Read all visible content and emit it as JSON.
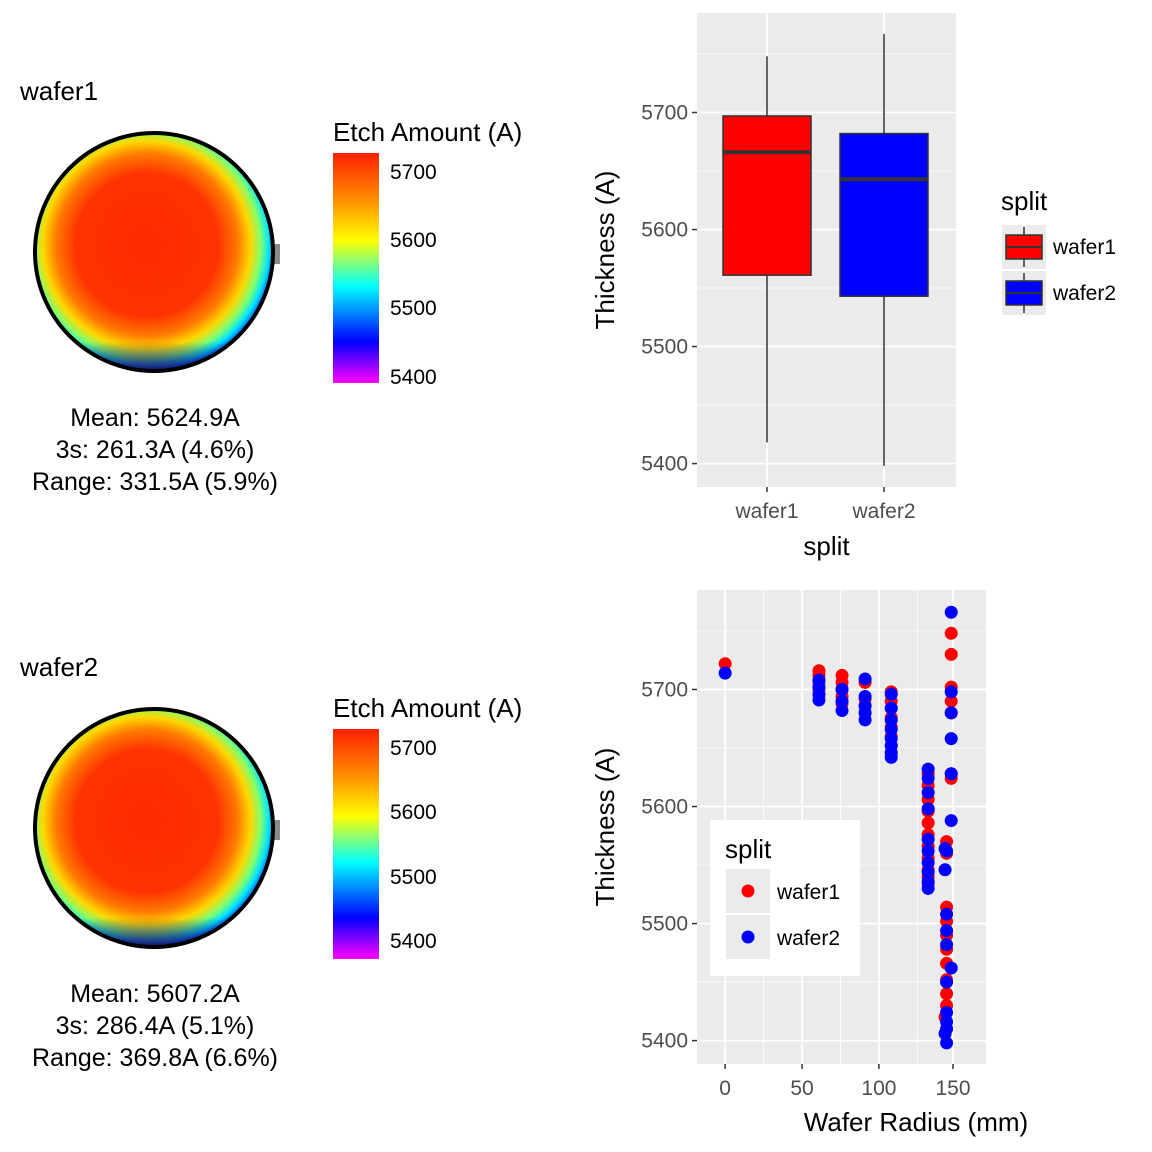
{
  "wafers": [
    {
      "name": "wafer1",
      "stats": [
        "Mean: 5624.9A",
        "3s: 261.3A (4.6%)",
        "Range: 331.5A (5.9%)"
      ],
      "colorbar": {
        "title": "Etch Amount (A)",
        "ticks": [
          "5700",
          "5600",
          "5500",
          "5400"
        ]
      }
    },
    {
      "name": "wafer2",
      "stats": [
        "Mean: 5607.2A",
        "3s: 286.4A (5.1%)",
        "Range: 369.8A (6.6%)"
      ],
      "colorbar": {
        "title": "Etch Amount (A)",
        "ticks": [
          "5700",
          "5600",
          "5500",
          "5400"
        ]
      }
    }
  ],
  "colors": {
    "wafer1": "#ff0000",
    "wafer2": "#0000ff",
    "panel_bg": "#ebebeb",
    "grid": "#ffffff",
    "colorbar_stops": [
      "#ff00ff",
      "#0000ff",
      "#00ffff",
      "#ffff00",
      "#ff8000",
      "#ff2000"
    ]
  },
  "chart_data": [
    {
      "type": "heatmap",
      "title": "wafer1",
      "legend_title": "Etch Amount (A)",
      "scale": [
        5400,
        5700
      ]
    },
    {
      "type": "heatmap",
      "title": "wafer2",
      "legend_title": "Etch Amount (A)",
      "scale": [
        5400,
        5700
      ]
    },
    {
      "type": "box",
      "xlabel": "split",
      "ylabel": "Thickness (A)",
      "categories": [
        "wafer1",
        "wafer2"
      ],
      "ylim": [
        5380,
        5785
      ],
      "yticks": [
        5400,
        5500,
        5600,
        5700
      ],
      "boxes": [
        {
          "name": "wafer1",
          "min": 5418,
          "q1": 5561,
          "median": 5666,
          "q3": 5697,
          "max": 5748
        },
        {
          "name": "wafer2",
          "min": 5398,
          "q1": 5543,
          "median": 5643,
          "q3": 5682,
          "max": 5767
        }
      ],
      "legend": {
        "title": "split",
        "entries": [
          "wafer1",
          "wafer2"
        ],
        "position": "right"
      },
      "grid": true
    },
    {
      "type": "scatter",
      "xlabel": "Wafer Radius (mm)",
      "ylabel": "Thickness (A)",
      "xlim": [
        -8,
        152
      ],
      "ylim": [
        5380,
        5785
      ],
      "xticks": [
        0,
        50,
        100,
        150
      ],
      "yticks": [
        5400,
        5500,
        5600,
        5700
      ],
      "legend": {
        "title": "split",
        "entries": [
          "wafer1",
          "wafer2"
        ],
        "position": "bottom-left inside"
      },
      "grid": true,
      "series": [
        {
          "name": "wafer1",
          "points": [
            [
              0,
              5722
            ],
            [
              61,
              5716
            ],
            [
              61,
              5712
            ],
            [
              61,
              5706
            ],
            [
              61,
              5700
            ],
            [
              61,
              5695
            ],
            [
              76,
              5712
            ],
            [
              76,
              5706
            ],
            [
              76,
              5700
            ],
            [
              76,
              5694
            ],
            [
              76,
              5688
            ],
            [
              91,
              5706
            ],
            [
              91,
              5692
            ],
            [
              91,
              5686
            ],
            [
              91,
              5680
            ],
            [
              108,
              5698
            ],
            [
              108,
              5690
            ],
            [
              108,
              5684
            ],
            [
              108,
              5676
            ],
            [
              108,
              5668
            ],
            [
              108,
              5660
            ],
            [
              108,
              5652
            ],
            [
              108,
              5646
            ],
            [
              132,
              5628
            ],
            [
              132,
              5618
            ],
            [
              132,
              5606
            ],
            [
              132,
              5596
            ],
            [
              132,
              5586
            ],
            [
              132,
              5576
            ],
            [
              132,
              5566
            ],
            [
              132,
              5556
            ],
            [
              132,
              5546
            ],
            [
              132,
              5540
            ],
            [
              132,
              5534
            ],
            [
              144,
              5570
            ],
            [
              144,
              5560
            ],
            [
              144,
              5514
            ],
            [
              144,
              5502
            ],
            [
              144,
              5490
            ],
            [
              144,
              5478
            ],
            [
              144,
              5466
            ],
            [
              144,
              5452
            ],
            [
              144,
              5440
            ],
            [
              144,
              5430
            ],
            [
              143,
              5420
            ],
            [
              147,
              5748
            ],
            [
              147,
              5730
            ],
            [
              147,
              5702
            ],
            [
              147,
              5690
            ],
            [
              147,
              5680
            ],
            [
              147,
              5628
            ],
            [
              147,
              5624
            ]
          ]
        },
        {
          "name": "wafer2",
          "points": [
            [
              0,
              5714
            ],
            [
              61,
              5708
            ],
            [
              61,
              5702
            ],
            [
              61,
              5696
            ],
            [
              61,
              5691
            ],
            [
              76,
              5700
            ],
            [
              76,
              5690
            ],
            [
              76,
              5682
            ],
            [
              91,
              5709
            ],
            [
              91,
              5694
            ],
            [
              91,
              5686
            ],
            [
              91,
              5680
            ],
            [
              91,
              5674
            ],
            [
              108,
              5696
            ],
            [
              108,
              5684
            ],
            [
              108,
              5674
            ],
            [
              108,
              5666
            ],
            [
              108,
              5658
            ],
            [
              108,
              5652
            ],
            [
              108,
              5646
            ],
            [
              108,
              5642
            ],
            [
              132,
              5632
            ],
            [
              132,
              5624
            ],
            [
              132,
              5612
            ],
            [
              132,
              5598
            ],
            [
              132,
              5572
            ],
            [
              132,
              5562
            ],
            [
              132,
              5552
            ],
            [
              132,
              5544
            ],
            [
              132,
              5536
            ],
            [
              132,
              5530
            ],
            [
              143,
              5564
            ],
            [
              143,
              5546
            ],
            [
              144,
              5562
            ],
            [
              144,
              5508
            ],
            [
              144,
              5494
            ],
            [
              144,
              5482
            ],
            [
              144,
              5450
            ],
            [
              144,
              5424
            ],
            [
              144,
              5416
            ],
            [
              144,
              5410
            ],
            [
              143,
              5406
            ],
            [
              144,
              5398
            ],
            [
              147,
              5766
            ],
            [
              147,
              5698
            ],
            [
              147,
              5680
            ],
            [
              147,
              5658
            ],
            [
              147,
              5628
            ],
            [
              147,
              5588
            ],
            [
              147,
              5462
            ]
          ]
        }
      ]
    }
  ]
}
